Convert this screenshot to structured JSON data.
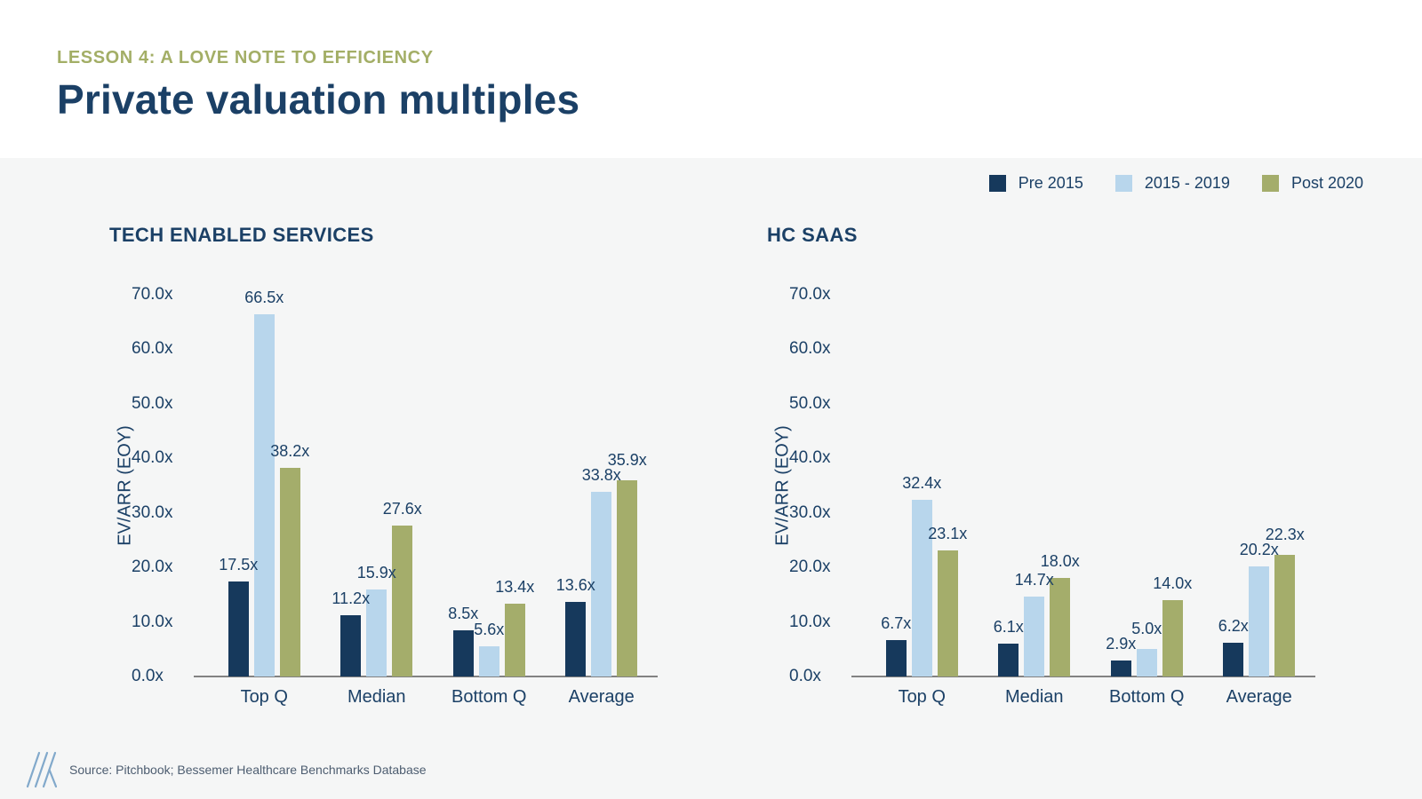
{
  "header": {
    "eyebrow": "LESSON 4: A LOVE NOTE TO EFFICIENCY",
    "title": "Private valuation multiples"
  },
  "legend": {
    "items": [
      {
        "label": "Pre 2015",
        "color": "#16395c"
      },
      {
        "label": "2015 - 2019",
        "color": "#b8d6ec"
      },
      {
        "label": "Post 2020",
        "color": "#a4ad6b"
      }
    ]
  },
  "colors": {
    "navy": "#16395c",
    "light_blue": "#b8d6ec",
    "olive": "#a4ad6b",
    "navy_text": "#1b4066",
    "eyebrow_olive": "#a3ae66",
    "body_background": "#f5f6f6",
    "header_background": "#ffffff",
    "axis_gray": "#828282",
    "logo_blue": "#82a9cb"
  },
  "chart_data": [
    {
      "type": "bar",
      "title": "TECH ENABLED SERVICES",
      "xlabel": "",
      "ylabel": "EV/ARR (EOY)",
      "categories": [
        "Top Q",
        "Median",
        "Bottom Q",
        "Average"
      ],
      "series": [
        {
          "name": "Pre 2015",
          "color": "#16395c",
          "values": [
            17.5,
            11.2,
            8.5,
            13.6
          ],
          "labels": [
            "17.5x",
            "11.2x",
            "8.5x",
            "13.6x"
          ]
        },
        {
          "name": "2015 - 2019",
          "color": "#b8d6ec",
          "values": [
            66.5,
            15.9,
            5.6,
            33.8
          ],
          "labels": [
            "66.5x",
            "15.9x",
            "5.6x",
            "33.8x"
          ]
        },
        {
          "name": "Post 2020",
          "color": "#a4ad6b",
          "values": [
            38.2,
            27.6,
            13.4,
            35.9
          ],
          "labels": [
            "38.2x",
            "27.6x",
            "13.4x",
            "35.9x"
          ]
        }
      ],
      "ylim": [
        0,
        70
      ],
      "yticks": [
        {
          "value": 0,
          "label": "0.0x"
        },
        {
          "value": 10,
          "label": "10.0x"
        },
        {
          "value": 20,
          "label": "20.0x"
        },
        {
          "value": 30,
          "label": "30.0x"
        },
        {
          "value": 40,
          "label": "40.0x"
        },
        {
          "value": 50,
          "label": "50.0x"
        },
        {
          "value": 60,
          "label": "60.0x"
        },
        {
          "value": 70,
          "label": "70.0x"
        }
      ],
      "grid": false,
      "legend_position": "shared-top-right"
    },
    {
      "type": "bar",
      "title": "HC SAAS",
      "xlabel": "",
      "ylabel": "EV/ARR (EOY)",
      "categories": [
        "Top Q",
        "Median",
        "Bottom Q",
        "Average"
      ],
      "series": [
        {
          "name": "Pre 2015",
          "color": "#16395c",
          "values": [
            6.7,
            6.1,
            2.9,
            6.2
          ],
          "labels": [
            "6.7x",
            "6.1x",
            "2.9x",
            "6.2x"
          ]
        },
        {
          "name": "2015 - 2019",
          "color": "#b8d6ec",
          "values": [
            32.4,
            14.7,
            5.0,
            20.2
          ],
          "labels": [
            "32.4x",
            "14.7x",
            "5.0x",
            "20.2x"
          ]
        },
        {
          "name": "Post 2020",
          "color": "#a4ad6b",
          "values": [
            23.1,
            18.0,
            14.0,
            22.3
          ],
          "labels": [
            "23.1x",
            "18.0x",
            "14.0x",
            "22.3x"
          ]
        }
      ],
      "ylim": [
        0,
        70
      ],
      "yticks": [
        {
          "value": 0,
          "label": "0.0x"
        },
        {
          "value": 10,
          "label": "10.0x"
        },
        {
          "value": 20,
          "label": "20.0x"
        },
        {
          "value": 30,
          "label": "30.0x"
        },
        {
          "value": 40,
          "label": "40.0x"
        },
        {
          "value": 50,
          "label": "50.0x"
        },
        {
          "value": 60,
          "label": "60.0x"
        },
        {
          "value": 70,
          "label": "70.0x"
        }
      ],
      "grid": false,
      "legend_position": "shared-top-right"
    }
  ],
  "footer": {
    "source": "Source: Pitchbook; Bessemer Healthcare Benchmarks Database",
    "logo": "bessemer-slashes-mark"
  }
}
